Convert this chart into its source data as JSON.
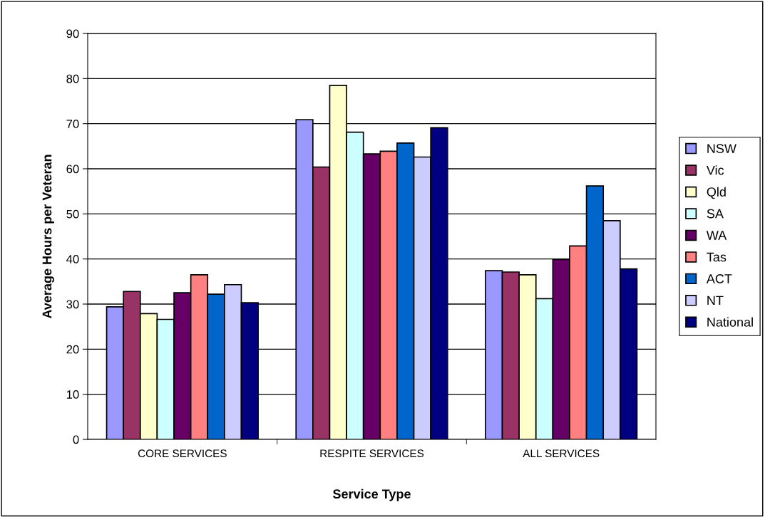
{
  "chart_data": {
    "type": "bar",
    "xlabel": "Service Type",
    "ylabel": "Average Hours per Veteran",
    "categories": [
      "CORE SERVICES",
      "RESPITE SERVICES",
      "ALL SERVICES"
    ],
    "series": [
      {
        "name": "NSW",
        "color": "#9999ff",
        "values": [
          29.4,
          70.9,
          37.4
        ]
      },
      {
        "name": "Vic",
        "color": "#993366",
        "values": [
          32.8,
          60.4,
          37.1
        ]
      },
      {
        "name": "Qld",
        "color": "#ffffcc",
        "values": [
          27.9,
          78.5,
          36.5
        ]
      },
      {
        "name": "SA",
        "color": "#ccffff",
        "values": [
          26.6,
          68.1,
          31.2
        ]
      },
      {
        "name": "WA",
        "color": "#660066",
        "values": [
          32.5,
          63.3,
          39.9
        ]
      },
      {
        "name": "Tas",
        "color": "#ff8080",
        "values": [
          36.5,
          63.9,
          42.9
        ]
      },
      {
        "name": "ACT",
        "color": "#0066cc",
        "values": [
          32.2,
          65.7,
          56.2
        ]
      },
      {
        "name": "NT",
        "color": "#ccccff",
        "values": [
          34.3,
          62.6,
          48.5
        ]
      },
      {
        "name": "National",
        "color": "#000080",
        "values": [
          30.3,
          69.1,
          37.8
        ]
      }
    ],
    "ylim": [
      0,
      90
    ],
    "yticks": [
      0,
      10,
      20,
      30,
      40,
      50,
      60,
      70,
      80,
      90
    ],
    "grid": "y",
    "legend": "right"
  }
}
